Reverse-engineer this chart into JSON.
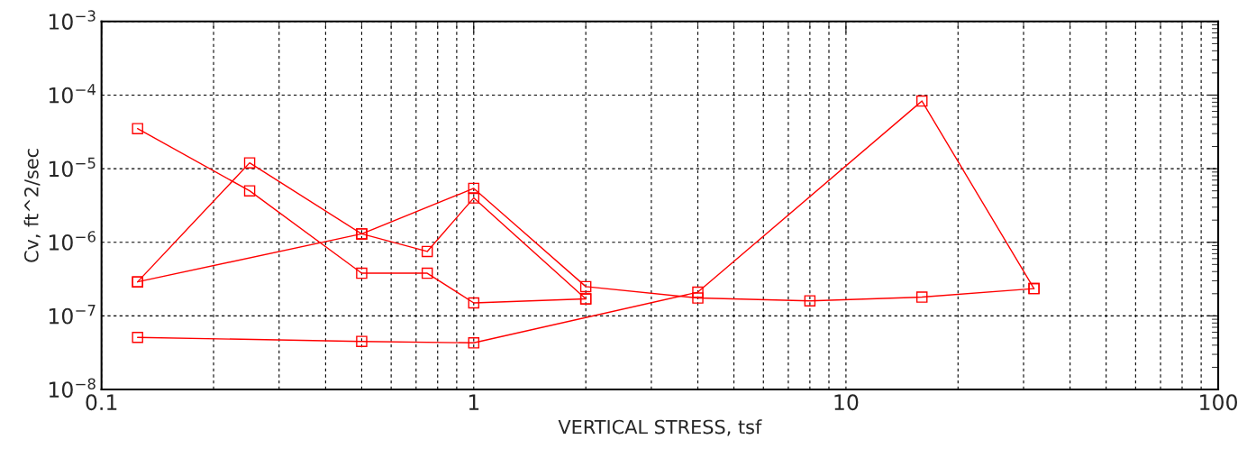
{
  "chart_data": {
    "type": "line",
    "xlabel": "VERTICAL STRESS, tsf",
    "ylabel": "Cv, ft^2/sec",
    "log": "xy",
    "grid": true,
    "marker": "square",
    "line_style": "solid",
    "legend": false,
    "xlim": [
      0.1,
      100
    ],
    "xticks": [
      0.1,
      1,
      10,
      100
    ],
    "ylim": [
      1e-08,
      0.001
    ],
    "yticks": [
      {
        "value": 1e-08,
        "label": "10$^{−8}$"
      },
      {
        "value": 1e-07,
        "label": "10$^{−7}$"
      },
      {
        "value": 1e-06,
        "label": "10$^{−6}$"
      },
      {
        "value": 1e-05,
        "label": "10$^{−5}$"
      },
      {
        "value": 0.0001,
        "label": "10$^{−4}$"
      },
      {
        "value": 0.001,
        "label": "10$^{−3}$"
      }
    ],
    "series": [
      {
        "color": "#ff0000",
        "x": [
          0.125,
          0.25,
          0.5,
          0.75,
          1,
          2
        ],
        "values": [
          3.5e-05,
          5e-06,
          3.8e-07,
          3.8e-07,
          1.5e-07,
          1.7e-07
        ]
      },
      {
        "color": "#ff0000",
        "x": [
          0.125,
          0.25,
          0.5,
          0.75,
          1,
          2
        ],
        "values": [
          2.9e-07,
          1.2e-05,
          1.3e-06,
          7.5e-07,
          4e-06,
          1.7e-07
        ]
      },
      {
        "color": "#ff0000",
        "x": [
          0.125,
          0.5,
          1,
          2,
          4,
          8,
          16,
          32
        ],
        "values": [
          2.9e-07,
          1.3e-06,
          5.4e-06,
          2.5e-07,
          1.75e-07,
          1.6e-07,
          1.8e-07,
          2.35e-07
        ]
      },
      {
        "color": "#ff0000",
        "x": [
          0.125,
          0.5,
          1,
          4,
          16,
          32
        ],
        "values": [
          5.1e-08,
          4.5e-08,
          4.3e-08,
          2.1e-07,
          8.3e-05,
          2.35e-07
        ]
      }
    ]
  }
}
